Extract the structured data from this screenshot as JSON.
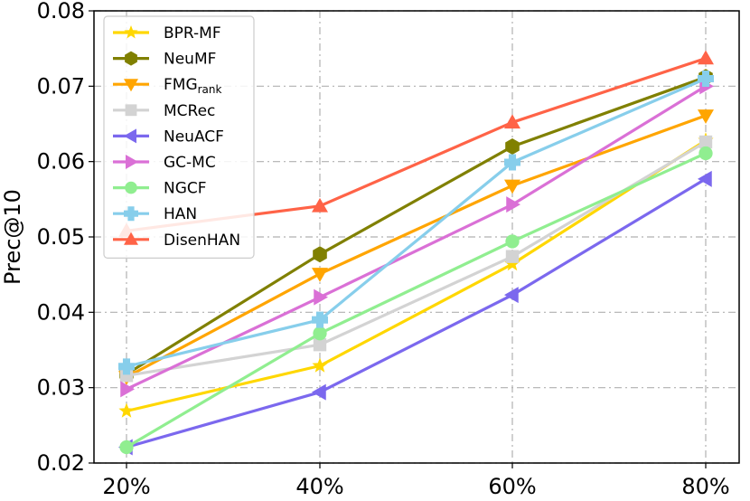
{
  "chart_data": {
    "type": "line",
    "title": "",
    "xlabel": "",
    "ylabel": "Prec@10",
    "categories": [
      "20%",
      "40%",
      "60%",
      "80%"
    ],
    "ylim": [
      0.02,
      0.08
    ],
    "yticks": [
      "0.02",
      "0.03",
      "0.04",
      "0.05",
      "0.06",
      "0.07",
      "0.08"
    ],
    "grid": true,
    "legend_position": "top-left",
    "series": [
      {
        "name": "BPR-MF",
        "sub": "",
        "color": "#FFD700",
        "marker": "star",
        "values": [
          0.0269,
          0.0329,
          0.0464,
          0.0628
        ]
      },
      {
        "name": "NeuMF",
        "sub": "",
        "color": "#808000",
        "marker": "hexagon",
        "values": [
          0.0318,
          0.0477,
          0.062,
          0.0712
        ]
      },
      {
        "name": "FMG",
        "sub": "rank",
        "color": "#FFA500",
        "marker": "triangle-down",
        "values": [
          0.0314,
          0.0451,
          0.0568,
          0.0661
        ]
      },
      {
        "name": "MCRec",
        "sub": "",
        "color": "#D3D3D3",
        "marker": "square",
        "values": [
          0.0316,
          0.0357,
          0.0474,
          0.0626
        ]
      },
      {
        "name": "NeuACF",
        "sub": "",
        "color": "#7B68EE",
        "marker": "triangle-left",
        "values": [
          0.0221,
          0.0294,
          0.0423,
          0.0577
        ]
      },
      {
        "name": "GC-MC",
        "sub": "",
        "color": "#DA70D6",
        "marker": "triangle-right",
        "values": [
          0.0298,
          0.042,
          0.0543,
          0.07
        ]
      },
      {
        "name": "NGCF",
        "sub": "",
        "color": "#90EE90",
        "marker": "circle",
        "values": [
          0.0221,
          0.0372,
          0.0494,
          0.0611
        ]
      },
      {
        "name": "HAN",
        "sub": "",
        "color": "#87CEEB",
        "marker": "plus",
        "values": [
          0.0328,
          0.039,
          0.0599,
          0.071
        ]
      },
      {
        "name": "DisenHAN",
        "sub": "",
        "color": "#FF6347",
        "marker": "triangle-up",
        "values": [
          0.0508,
          0.0541,
          0.0652,
          0.0737
        ]
      }
    ]
  }
}
